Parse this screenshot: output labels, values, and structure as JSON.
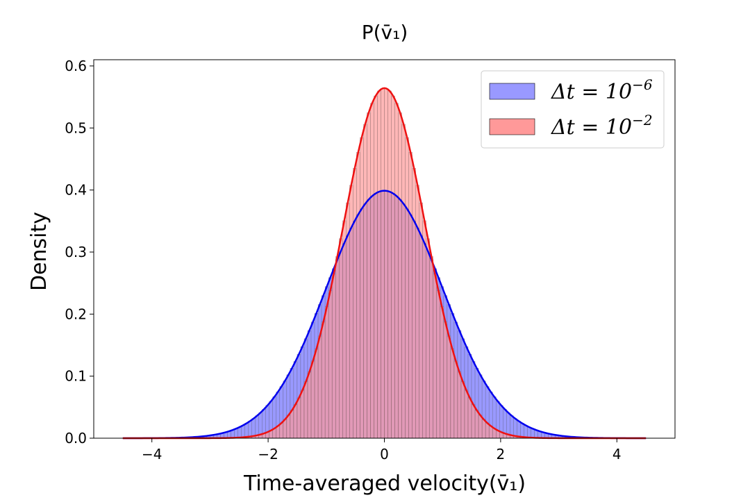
{
  "chart_data": {
    "type": "bar",
    "title": "P(v̄₁)",
    "xlabel": "Time-averaged velocity(v̄₁)",
    "ylabel": "Density",
    "xlim": [
      -5,
      5
    ],
    "ylim": [
      0,
      0.61
    ],
    "xticks": [
      -4,
      -2,
      0,
      2,
      4
    ],
    "xtick_labels": [
      "−4",
      "−2",
      "0",
      "2",
      "4"
    ],
    "yticks": [
      0.0,
      0.1,
      0.2,
      0.3,
      0.4,
      0.5,
      0.6
    ],
    "ytick_labels": [
      "0.0",
      "0.1",
      "0.2",
      "0.3",
      "0.4",
      "0.5",
      "0.6"
    ],
    "grid": false,
    "legend_position": "top-right",
    "histogram_range": [
      -4.5,
      4.5
    ],
    "series": [
      {
        "name": "Δt = 10⁻⁶",
        "legend_base": "Δt = 10",
        "legend_exp": "−6",
        "kind": "histogram+density",
        "std": 1.0,
        "fill_color": "#9999ff",
        "line_color": "#0000ee"
      },
      {
        "name": "Δt = 10⁻²",
        "legend_base": "Δt = 10",
        "legend_exp": "−2",
        "kind": "histogram+density",
        "std": 0.707,
        "fill_color": "#ff9999",
        "line_color": "#ee1111"
      }
    ]
  }
}
